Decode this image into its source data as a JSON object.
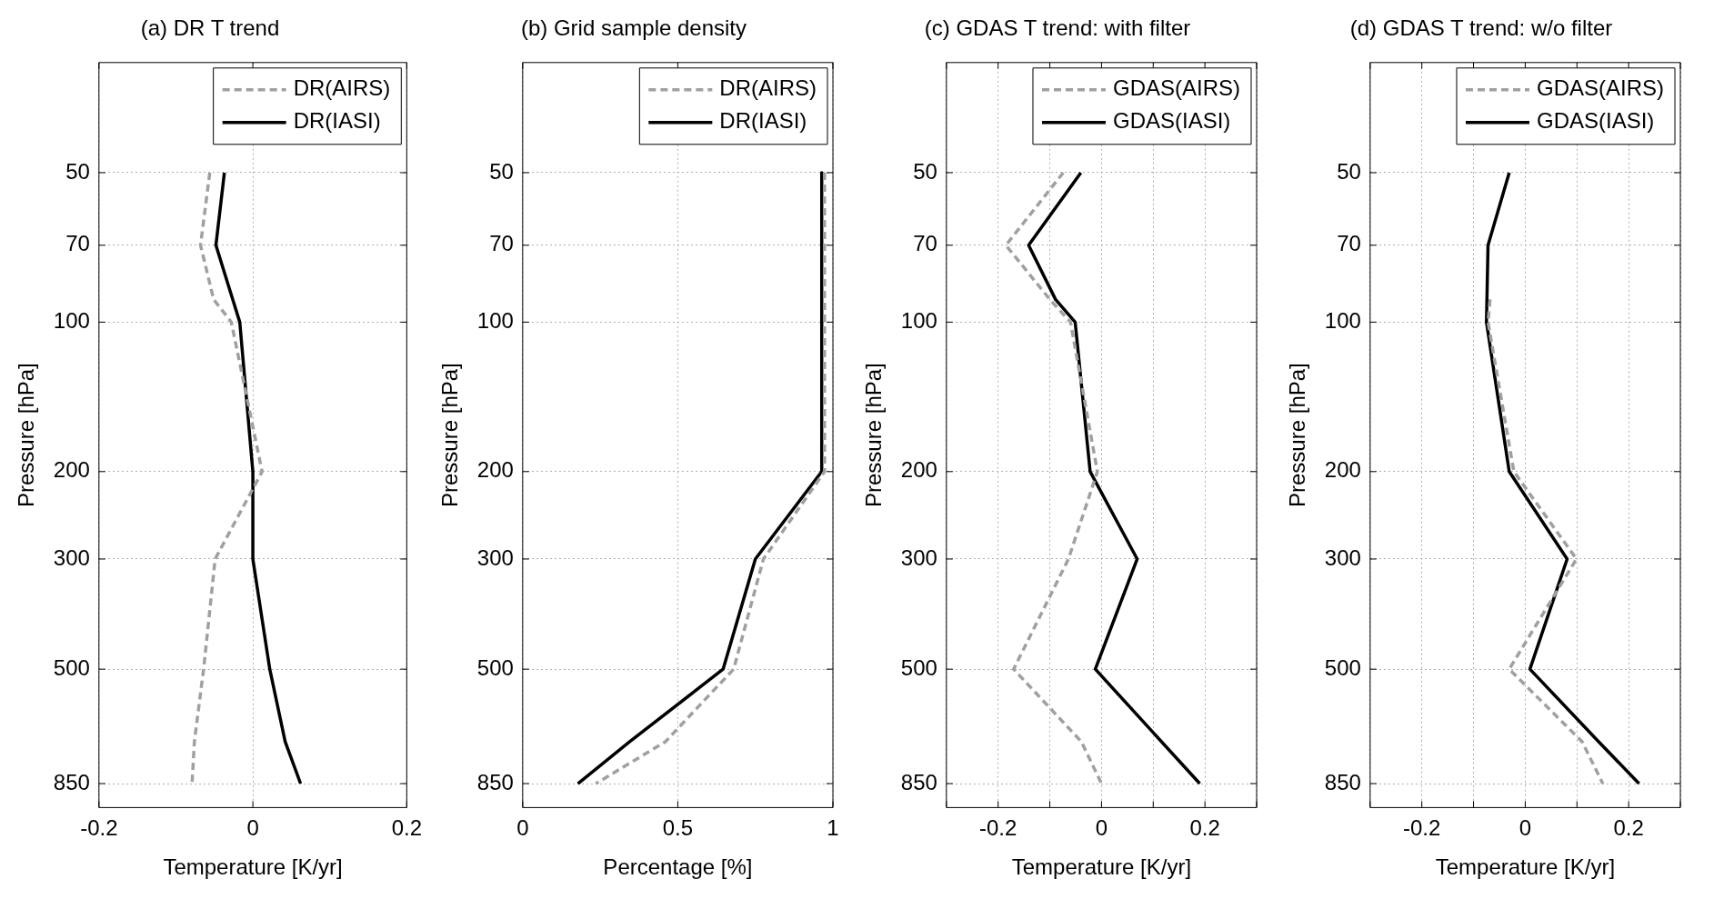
{
  "chart_data": [
    {
      "type": "line",
      "title": "(a) DR T trend",
      "xlabel": "Temperature [K/yr]",
      "ylabel": "Pressure [hPa]",
      "xlim": [
        -0.2,
        0.2
      ],
      "xticks": [
        -0.2,
        0,
        0.2
      ],
      "ylim": [
        950,
        30
      ],
      "yticks": [
        50,
        70,
        100,
        200,
        300,
        500,
        850
      ],
      "log": "y",
      "grid": true,
      "legend": "top right",
      "series": [
        {
          "name": "DR(AIRS)",
          "color": "#a0a0a0",
          "line_style": "dashed",
          "x": [
            -0.056,
            -0.068,
            -0.051,
            -0.028,
            0.012,
            -0.049,
            -0.064,
            -0.076,
            -0.079
          ],
          "values": [
            50,
            70,
            90,
            100,
            200,
            300,
            500,
            700,
            850
          ]
        },
        {
          "name": "DR(IASI)",
          "color": "#000000",
          "line_style": "solid",
          "x": [
            -0.037,
            -0.048,
            -0.017,
            0.0,
            0.0,
            0.022,
            0.042,
            0.062
          ],
          "values": [
            50,
            70,
            100,
            200,
            300,
            500,
            700,
            850
          ]
        }
      ]
    },
    {
      "type": "line",
      "title": "(b) Grid sample density",
      "xlabel": "Percentage [%]",
      "ylabel": "Pressure [hPa]",
      "xlim": [
        0,
        1
      ],
      "xticks": [
        0,
        0.5,
        1
      ],
      "ylim": [
        950,
        30
      ],
      "yticks": [
        50,
        70,
        100,
        200,
        300,
        500,
        850
      ],
      "log": "y",
      "grid": true,
      "legend": "top right",
      "series": [
        {
          "name": "DR(AIRS)",
          "color": "#a0a0a0",
          "line_style": "dashed",
          "x": [
            0.973,
            0.973,
            0.776,
            0.68,
            0.46,
            0.236
          ],
          "values": [
            50,
            200,
            300,
            500,
            700,
            850
          ]
        },
        {
          "name": "DR(IASI)",
          "color": "#000000",
          "line_style": "solid",
          "x": [
            0.964,
            0.964,
            0.75,
            0.646,
            0.345,
            0.178
          ],
          "values": [
            50,
            200,
            300,
            500,
            700,
            850
          ]
        }
      ]
    },
    {
      "type": "line",
      "title": "(c) GDAS T trend: with filter",
      "xlabel": "Temperature [K/yr]",
      "ylabel": "Pressure [hPa]",
      "xlim": [
        -0.3,
        0.3
      ],
      "xticks": [
        {
          "value": -0.3,
          "label": null
        },
        {
          "value": -0.2,
          "label": "-0.2"
        },
        {
          "value": -0.1,
          "label": null
        },
        0,
        {
          "value": 0.1,
          "label": null
        },
        {
          "value": 0.2,
          "label": "0.2"
        },
        {
          "value": 0.3,
          "label": null
        }
      ],
      "ylim": [
        950,
        30
      ],
      "yticks": [
        50,
        70,
        100,
        200,
        300,
        500,
        850
      ],
      "log": "y",
      "grid": true,
      "legend": "top right",
      "series": [
        {
          "name": "GDAS(AIRS)",
          "color": "#a0a0a0",
          "line_style": "dashed",
          "x": [
            -0.074,
            -0.185,
            -0.1,
            -0.06,
            -0.008,
            -0.064,
            -0.17,
            -0.039,
            0.0
          ],
          "values": [
            50,
            70,
            90,
            100,
            200,
            300,
            500,
            700,
            850
          ]
        },
        {
          "name": "GDAS(IASI)",
          "color": "#000000",
          "line_style": "solid",
          "x": [
            -0.04,
            -0.141,
            -0.089,
            -0.051,
            -0.022,
            0.069,
            -0.012,
            0.19
          ],
          "values": [
            50,
            70,
            90,
            100,
            200,
            300,
            500,
            850
          ]
        }
      ]
    },
    {
      "type": "line",
      "title": "(d) GDAS T trend: w/o filter",
      "xlabel": "Temperature [K/yr]",
      "ylabel": "Pressure [hPa]",
      "xlim": [
        -0.3,
        0.3
      ],
      "xticks": [
        {
          "value": -0.3,
          "label": null
        },
        {
          "value": -0.2,
          "label": "-0.2"
        },
        {
          "value": -0.1,
          "label": null
        },
        0,
        {
          "value": 0.1,
          "label": null
        },
        {
          "value": 0.2,
          "label": "0.2"
        },
        {
          "value": 0.3,
          "label": null
        }
      ],
      "ylim": [
        950,
        30
      ],
      "yticks": [
        50,
        70,
        100,
        200,
        300,
        500,
        850
      ],
      "log": "y",
      "grid": true,
      "legend": "top right",
      "series": [
        {
          "name": "GDAS(AIRS)",
          "color": "#a0a0a0",
          "line_style": "dashed",
          "x": [
            -0.068,
            -0.072,
            -0.022,
            0.099,
            -0.031,
            0.11,
            0.15
          ],
          "values": [
            90,
            100,
            200,
            300,
            500,
            700,
            850
          ]
        },
        {
          "name": "GDAS(IASI)",
          "color": "#000000",
          "line_style": "solid",
          "x": [
            -0.031,
            -0.072,
            -0.075,
            -0.031,
            0.081,
            0.009,
            0.142,
            0.22
          ],
          "values": [
            50,
            70,
            100,
            200,
            300,
            500,
            700,
            850
          ]
        }
      ]
    }
  ]
}
